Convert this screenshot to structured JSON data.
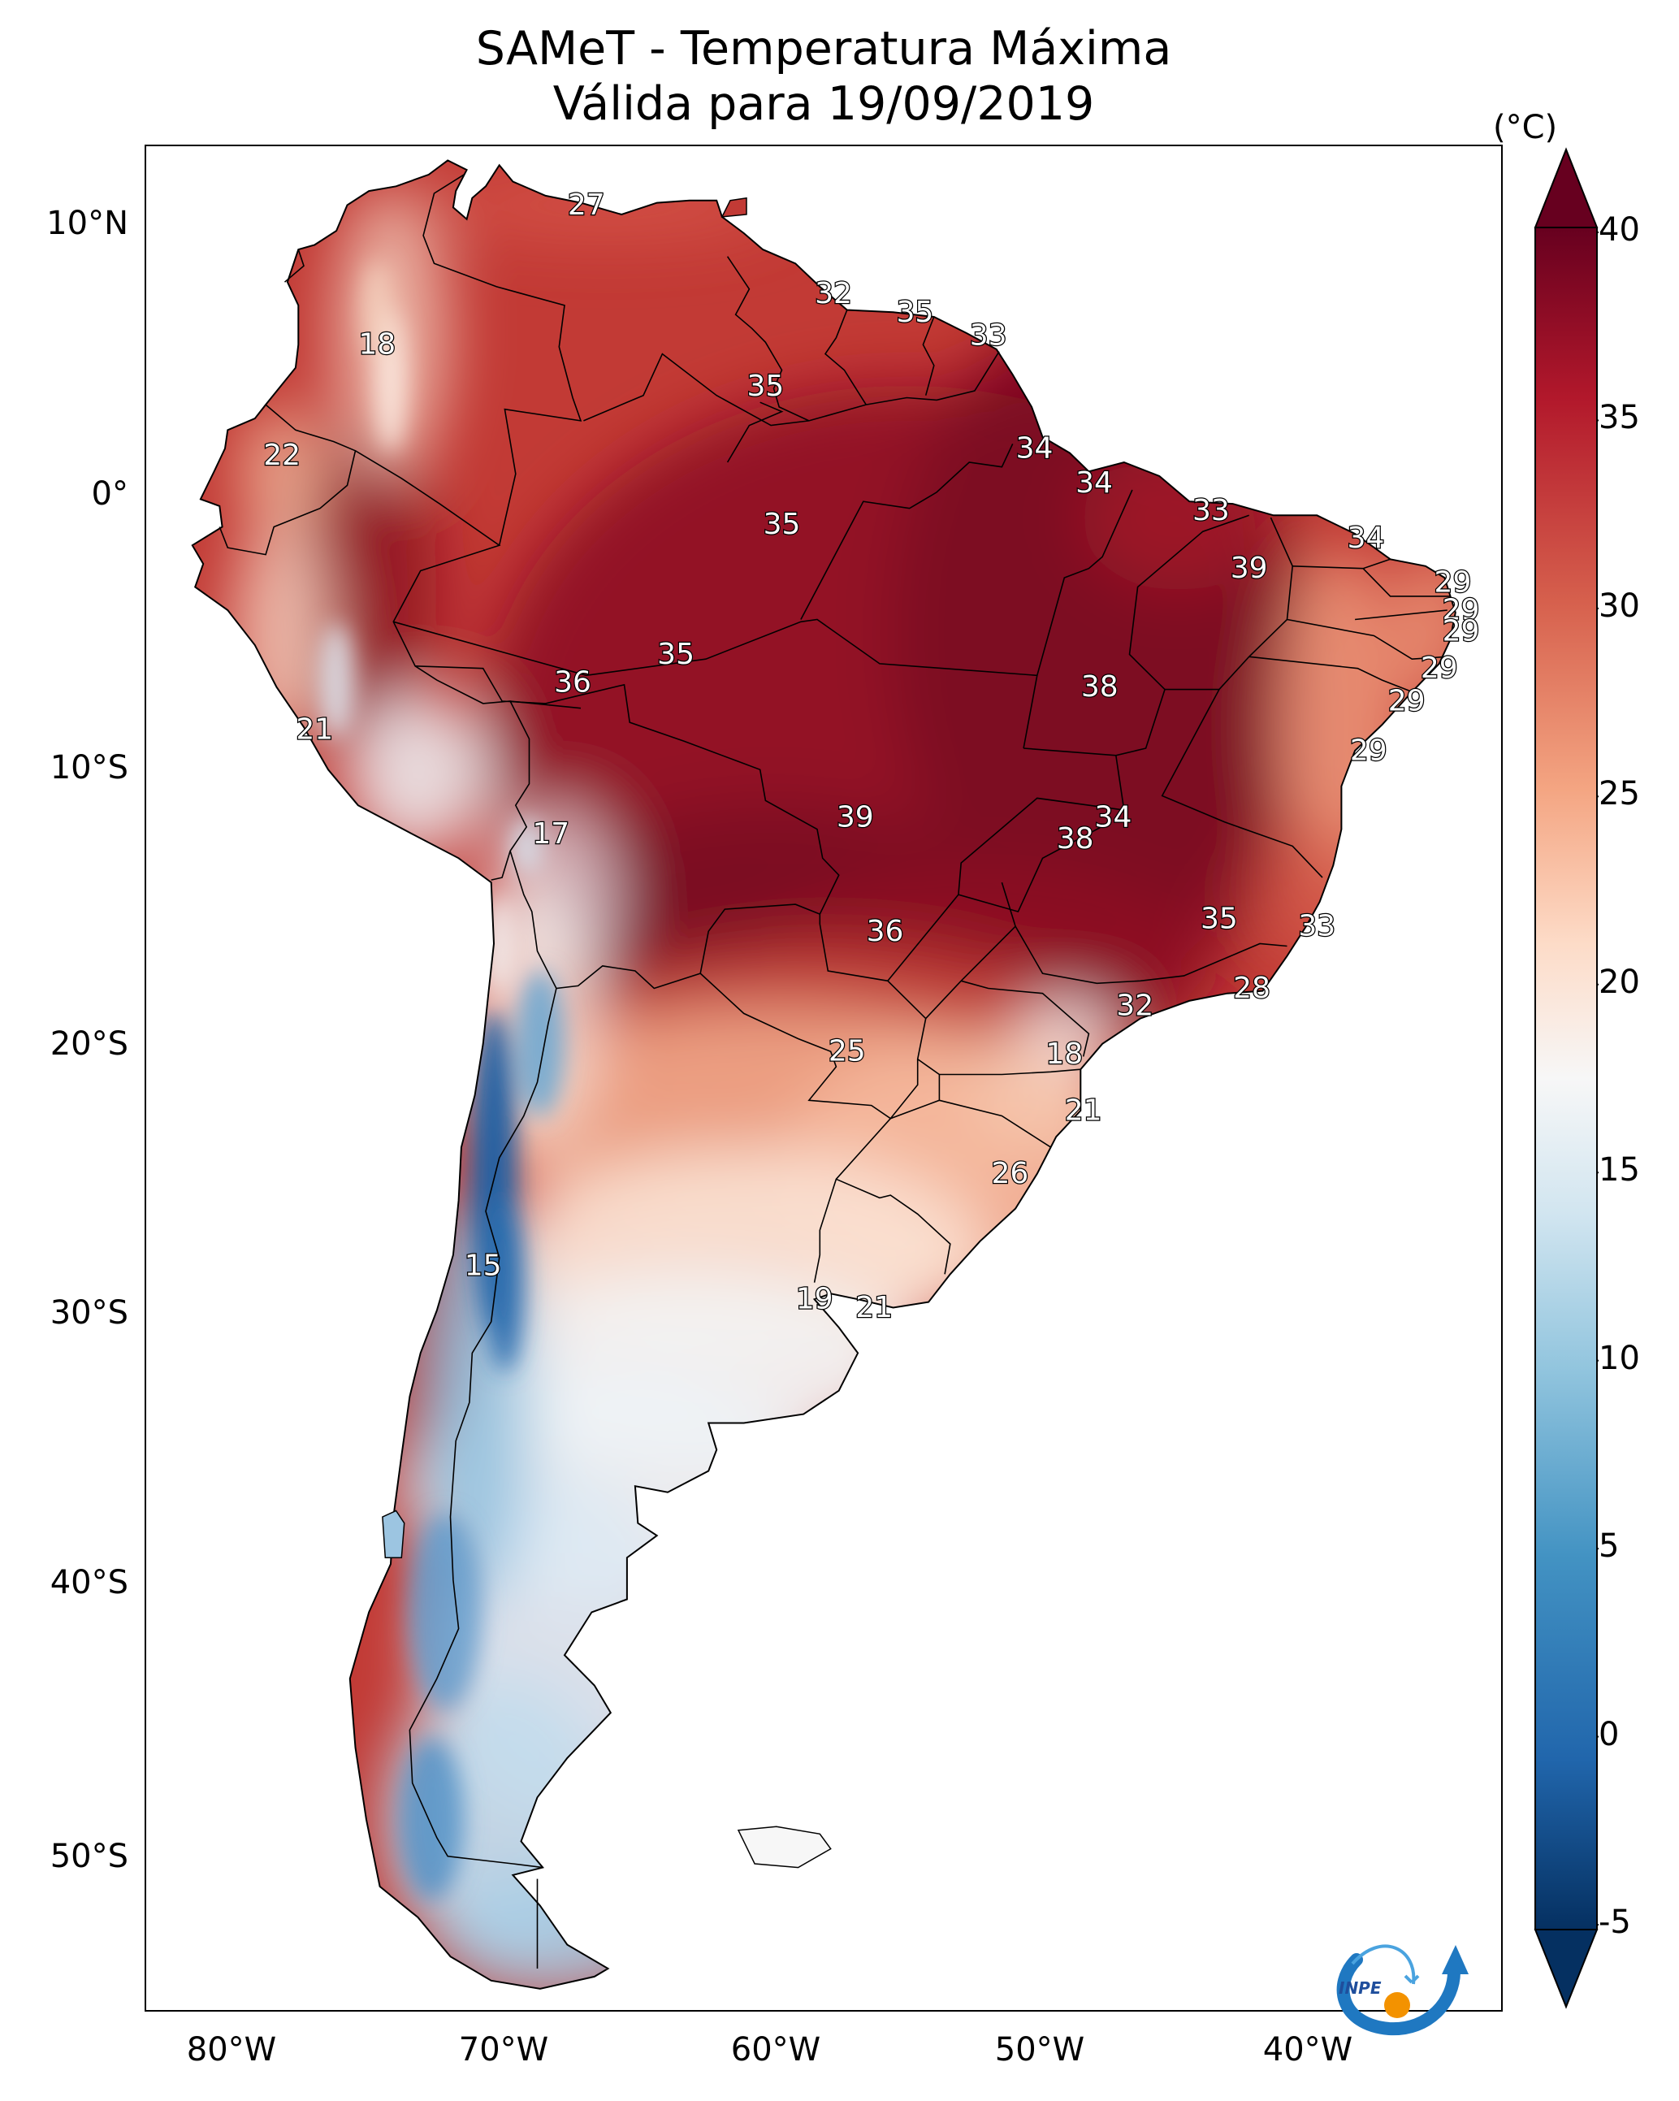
{
  "title": {
    "line1": "SAMeT - Temperatura Máxima",
    "line2": "Válida para 19/09/2019"
  },
  "axes": {
    "lat_labels": [
      "10°N",
      "0°",
      "10°S",
      "20°S",
      "30°S",
      "40°S",
      "50°S"
    ],
    "lon_labels": [
      "80°W",
      "70°W",
      "60°W",
      "50°W",
      "40°W"
    ],
    "lat_range": [
      -56,
      13
    ],
    "lon_range": [
      -83,
      -33
    ]
  },
  "colorbar": {
    "unit": "(°C)",
    "range": [
      -5,
      40
    ],
    "ticks": [
      "40",
      "35",
      "30",
      "25",
      "20",
      "15",
      "10",
      "5",
      "0",
      "-5"
    ],
    "extend": "both",
    "colormap": "RdBu_r",
    "colors": {
      "max": "#67001f",
      "high": "#b2182b",
      "warm": "#ef8a62",
      "mid": "#f7f7f7",
      "cool": "#67a9cf",
      "min": "#053061"
    }
  },
  "contour_labels": [
    {
      "text": "27",
      "lat": 10.5,
      "lon": -66.8
    },
    {
      "text": "32",
      "lat": 6.7,
      "lon": -57.7
    },
    {
      "text": "35",
      "lat": 5.9,
      "lon": -54.7
    },
    {
      "text": "33",
      "lat": 4.9,
      "lon": -52.0
    },
    {
      "text": "18",
      "lat": 4.5,
      "lon": -74.5
    },
    {
      "text": "35",
      "lat": 2.7,
      "lon": -60.2
    },
    {
      "text": "34",
      "lat": 0.0,
      "lon": -50.3
    },
    {
      "text": "22",
      "lat": -0.3,
      "lon": -78.0
    },
    {
      "text": "34",
      "lat": -1.5,
      "lon": -48.1
    },
    {
      "text": "33",
      "lat": -2.7,
      "lon": -43.8
    },
    {
      "text": "35",
      "lat": -3.3,
      "lon": -59.6
    },
    {
      "text": "34",
      "lat": -3.9,
      "lon": -38.1
    },
    {
      "text": "39",
      "lat": -5.2,
      "lon": -42.4
    },
    {
      "text": "29",
      "lat": -5.8,
      "lon": -34.9
    },
    {
      "text": "29",
      "lat": -7.0,
      "lon": -34.6
    },
    {
      "text": "29",
      "lat": -7.9,
      "lon": -34.6
    },
    {
      "text": "35",
      "lat": -8.9,
      "lon": -63.5
    },
    {
      "text": "29",
      "lat": -9.5,
      "lon": -35.4
    },
    {
      "text": "36",
      "lat": -10.1,
      "lon": -67.3
    },
    {
      "text": "38",
      "lat": -10.3,
      "lon": -47.9
    },
    {
      "text": "29",
      "lat": -10.9,
      "lon": -36.6
    },
    {
      "text": "21",
      "lat": -12.1,
      "lon": -76.8
    },
    {
      "text": "29",
      "lat": -13.0,
      "lon": -38.0
    },
    {
      "text": "34",
      "lat": -15.8,
      "lon": -47.4
    },
    {
      "text": "39",
      "lat": -15.8,
      "lon": -56.9
    },
    {
      "text": "38",
      "lat": -16.7,
      "lon": -48.8
    },
    {
      "text": "17",
      "lat": -16.5,
      "lon": -68.1
    },
    {
      "text": "35",
      "lat": -20.0,
      "lon": -43.5
    },
    {
      "text": "33",
      "lat": -20.3,
      "lon": -39.9
    },
    {
      "text": "36",
      "lat": -20.5,
      "lon": -55.8
    },
    {
      "text": "28",
      "lat": -22.8,
      "lon": -42.3
    },
    {
      "text": "32",
      "lat": -23.5,
      "lon": -46.6
    },
    {
      "text": "25",
      "lat": -25.3,
      "lon": -57.2
    },
    {
      "text": "18",
      "lat": -25.4,
      "lon": -49.2
    },
    {
      "text": "21",
      "lat": -27.6,
      "lon": -48.5
    },
    {
      "text": "26",
      "lat": -30.0,
      "lon": -51.2
    },
    {
      "text": "15",
      "lat": -33.4,
      "lon": -70.6
    },
    {
      "text": "19",
      "lat": -34.6,
      "lon": -58.4
    },
    {
      "text": "21",
      "lat": -34.9,
      "lon": -56.2
    }
  ],
  "logo": {
    "icon": "inpe-logo",
    "text": "INPE"
  }
}
